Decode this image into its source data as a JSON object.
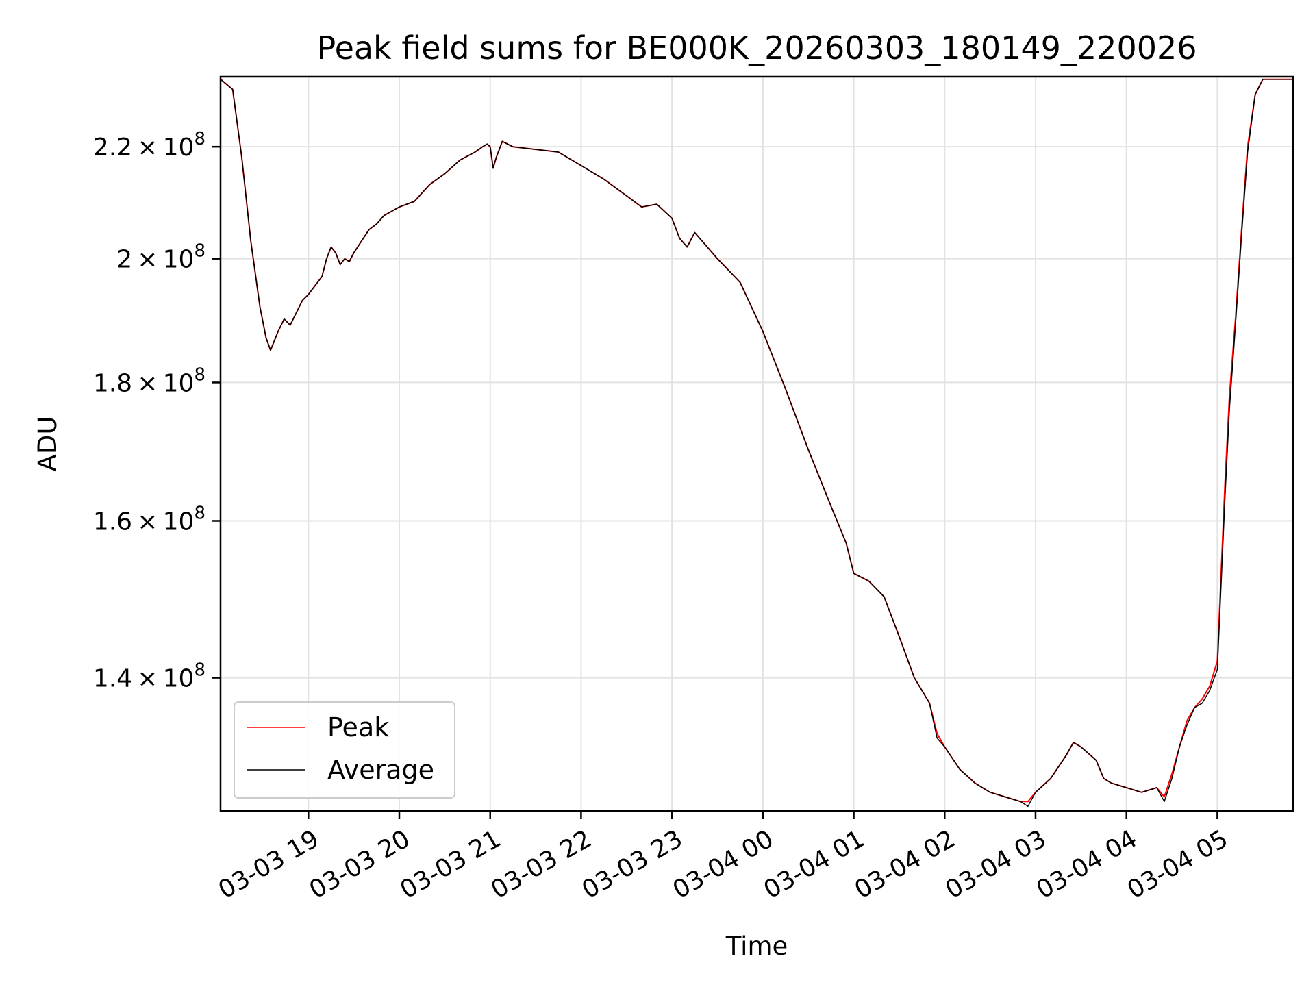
{
  "chart_data": {
    "type": "line",
    "title": "Peak field sums for BE000K_20260303_180149_220026",
    "xlabel": "Time",
    "ylabel": "ADU",
    "y_scale": "log",
    "xlim": [
      "2026-03-03 18:02",
      "2026-03-04 05:50"
    ],
    "ylim": [
      125000000,
      233500000
    ],
    "x_ticks": [
      "03-03 19",
      "03-03 20",
      "03-03 21",
      "03-03 22",
      "03-03 23",
      "03-04 00",
      "03-04 01",
      "03-04 02",
      "03-04 03",
      "03-04 04",
      "03-04 05"
    ],
    "y_ticks": [
      {
        "value": 140000000,
        "mantissa": "1.4",
        "exp": "8"
      },
      {
        "value": 160000000,
        "mantissa": "1.6",
        "exp": "8"
      },
      {
        "value": 180000000,
        "mantissa": "1.8",
        "exp": "8"
      },
      {
        "value": 200000000,
        "mantissa": "2",
        "exp": "8"
      },
      {
        "value": 220000000,
        "mantissa": "2.2",
        "exp": "8"
      }
    ],
    "grid": true,
    "legend": {
      "position": "lower left"
    },
    "series": [
      {
        "name": "Peak",
        "color": "#ff0000",
        "x": [
          "2026-03-03 18:02",
          "2026-03-03 18:10",
          "2026-03-03 18:16",
          "2026-03-03 18:22",
          "2026-03-03 18:28",
          "2026-03-03 18:32",
          "2026-03-03 18:35",
          "2026-03-03 18:40",
          "2026-03-03 18:44",
          "2026-03-03 18:48",
          "2026-03-03 18:52",
          "2026-03-03 18:56",
          "2026-03-03 19:00",
          "2026-03-03 19:03",
          "2026-03-03 19:06",
          "2026-03-03 19:09",
          "2026-03-03 19:12",
          "2026-03-03 19:15",
          "2026-03-03 19:18",
          "2026-03-03 19:21",
          "2026-03-03 19:24",
          "2026-03-03 19:27",
          "2026-03-03 19:30",
          "2026-03-03 19:35",
          "2026-03-03 19:40",
          "2026-03-03 19:45",
          "2026-03-03 19:50",
          "2026-03-03 20:00",
          "2026-03-03 20:10",
          "2026-03-03 20:20",
          "2026-03-03 20:30",
          "2026-03-03 20:40",
          "2026-03-03 20:50",
          "2026-03-03 20:55",
          "2026-03-03 20:58",
          "2026-03-03 21:00",
          "2026-03-03 21:02",
          "2026-03-03 21:04",
          "2026-03-03 21:08",
          "2026-03-03 21:15",
          "2026-03-03 21:30",
          "2026-03-03 21:45",
          "2026-03-03 22:00",
          "2026-03-03 22:15",
          "2026-03-03 22:30",
          "2026-03-03 22:40",
          "2026-03-03 22:50",
          "2026-03-03 23:00",
          "2026-03-03 23:05",
          "2026-03-03 23:10",
          "2026-03-03 23:15",
          "2026-03-03 23:20",
          "2026-03-03 23:30",
          "2026-03-03 23:45",
          "2026-03-04 00:00",
          "2026-03-04 00:15",
          "2026-03-04 00:30",
          "2026-03-04 00:45",
          "2026-03-04 00:55",
          "2026-03-04 01:00",
          "2026-03-04 01:10",
          "2026-03-04 01:20",
          "2026-03-04 01:30",
          "2026-03-04 01:40",
          "2026-03-04 01:50",
          "2026-03-04 01:55",
          "2026-03-04 02:00",
          "2026-03-04 02:10",
          "2026-03-04 02:20",
          "2026-03-04 02:30",
          "2026-03-04 02:40",
          "2026-03-04 02:50",
          "2026-03-04 02:55",
          "2026-03-04 03:00",
          "2026-03-04 03:10",
          "2026-03-04 03:20",
          "2026-03-04 03:25",
          "2026-03-04 03:30",
          "2026-03-04 03:40",
          "2026-03-04 03:45",
          "2026-03-04 03:50",
          "2026-03-04 04:00",
          "2026-03-04 04:10",
          "2026-03-04 04:20",
          "2026-03-04 04:25",
          "2026-03-04 04:30",
          "2026-03-04 04:35",
          "2026-03-04 04:40",
          "2026-03-04 04:45",
          "2026-03-04 04:50",
          "2026-03-04 04:55",
          "2026-03-04 05:00",
          "2026-03-04 05:05",
          "2026-03-04 05:08",
          "2026-03-04 05:12",
          "2026-03-04 05:16",
          "2026-03-04 05:20",
          "2026-03-04 05:25",
          "2026-03-04 05:30",
          "2026-03-04 05:40",
          "2026-03-04 05:50"
        ],
        "y": [
          233000000,
          231000000,
          218000000,
          203000000,
          192000000,
          187000000,
          185000000,
          188000000,
          190000000,
          189000000,
          191000000,
          193000000,
          194000000,
          195000000,
          196000000,
          197000000,
          200000000,
          202000000,
          201000000,
          199000000,
          200000000,
          199500000,
          201000000,
          203000000,
          205000000,
          206000000,
          207500000,
          209000000,
          210000000,
          213000000,
          215000000,
          217500000,
          219000000,
          220000000,
          220500000,
          220000000,
          216000000,
          218000000,
          221000000,
          220000000,
          219500000,
          219000000,
          216500000,
          214000000,
          211000000,
          209000000,
          209500000,
          207000000,
          203500000,
          202000000,
          204500000,
          203000000,
          200000000,
          196000000,
          188000000,
          179000000,
          170000000,
          162000000,
          157000000,
          153000000,
          152000000,
          150000000,
          145000000,
          140000000,
          137000000,
          133500000,
          132000000,
          129500000,
          128000000,
          127000000,
          126500000,
          126000000,
          126000000,
          127000000,
          128500000,
          131000000,
          132500000,
          132000000,
          130500000,
          128500000,
          128000000,
          127500000,
          127000000,
          127500000,
          126500000,
          129000000,
          132000000,
          135000000,
          136500000,
          137500000,
          139000000,
          142000000,
          165000000,
          178000000,
          190000000,
          205000000,
          220000000,
          230000000,
          233000000,
          233000000,
          233000000
        ]
      },
      {
        "name": "Average",
        "color": "#000000",
        "x": [
          "2026-03-03 18:02",
          "2026-03-03 18:10",
          "2026-03-03 18:16",
          "2026-03-03 18:22",
          "2026-03-03 18:28",
          "2026-03-03 18:32",
          "2026-03-03 18:35",
          "2026-03-03 18:40",
          "2026-03-03 18:44",
          "2026-03-03 18:48",
          "2026-03-03 18:52",
          "2026-03-03 18:56",
          "2026-03-03 19:00",
          "2026-03-03 19:03",
          "2026-03-03 19:06",
          "2026-03-03 19:09",
          "2026-03-03 19:12",
          "2026-03-03 19:15",
          "2026-03-03 19:18",
          "2026-03-03 19:21",
          "2026-03-03 19:24",
          "2026-03-03 19:27",
          "2026-03-03 19:30",
          "2026-03-03 19:35",
          "2026-03-03 19:40",
          "2026-03-03 19:45",
          "2026-03-03 19:50",
          "2026-03-03 20:00",
          "2026-03-03 20:10",
          "2026-03-03 20:20",
          "2026-03-03 20:30",
          "2026-03-03 20:40",
          "2026-03-03 20:50",
          "2026-03-03 20:55",
          "2026-03-03 20:58",
          "2026-03-03 21:00",
          "2026-03-03 21:02",
          "2026-03-03 21:04",
          "2026-03-03 21:08",
          "2026-03-03 21:15",
          "2026-03-03 21:30",
          "2026-03-03 21:45",
          "2026-03-03 22:00",
          "2026-03-03 22:15",
          "2026-03-03 22:30",
          "2026-03-03 22:40",
          "2026-03-03 22:50",
          "2026-03-03 23:00",
          "2026-03-03 23:05",
          "2026-03-03 23:10",
          "2026-03-03 23:15",
          "2026-03-03 23:20",
          "2026-03-03 23:30",
          "2026-03-03 23:45",
          "2026-03-04 00:00",
          "2026-03-04 00:15",
          "2026-03-04 00:30",
          "2026-03-04 00:45",
          "2026-03-04 00:55",
          "2026-03-04 01:00",
          "2026-03-04 01:10",
          "2026-03-04 01:20",
          "2026-03-04 01:30",
          "2026-03-04 01:40",
          "2026-03-04 01:50",
          "2026-03-04 01:55",
          "2026-03-04 02:00",
          "2026-03-04 02:10",
          "2026-03-04 02:20",
          "2026-03-04 02:30",
          "2026-03-04 02:40",
          "2026-03-04 02:50",
          "2026-03-04 02:55",
          "2026-03-04 03:00",
          "2026-03-04 03:10",
          "2026-03-04 03:20",
          "2026-03-04 03:25",
          "2026-03-04 03:30",
          "2026-03-04 03:40",
          "2026-03-04 03:45",
          "2026-03-04 03:50",
          "2026-03-04 04:00",
          "2026-03-04 04:10",
          "2026-03-04 04:20",
          "2026-03-04 04:25",
          "2026-03-04 04:30",
          "2026-03-04 04:35",
          "2026-03-04 04:40",
          "2026-03-04 04:45",
          "2026-03-04 04:50",
          "2026-03-04 04:55",
          "2026-03-04 05:00",
          "2026-03-04 05:05",
          "2026-03-04 05:08",
          "2026-03-04 05:12",
          "2026-03-04 05:16",
          "2026-03-04 05:20",
          "2026-03-04 05:25",
          "2026-03-04 05:30",
          "2026-03-04 05:40",
          "2026-03-04 05:50"
        ],
        "y": [
          233000000,
          231000000,
          218000000,
          203000000,
          192000000,
          187000000,
          185000000,
          188000000,
          190000000,
          189000000,
          191000000,
          193000000,
          194000000,
          195000000,
          196000000,
          197000000,
          200000000,
          202000000,
          201000000,
          199000000,
          200000000,
          199500000,
          201000000,
          203000000,
          205000000,
          206000000,
          207500000,
          209000000,
          210000000,
          213000000,
          215000000,
          217500000,
          219000000,
          220000000,
          220500000,
          220000000,
          216000000,
          218000000,
          221000000,
          220000000,
          219500000,
          219000000,
          216500000,
          214000000,
          211000000,
          209000000,
          209500000,
          207000000,
          203500000,
          202000000,
          204500000,
          203000000,
          200000000,
          196000000,
          188000000,
          179000000,
          170000000,
          162000000,
          157000000,
          153000000,
          152000000,
          150000000,
          145000000,
          140000000,
          137000000,
          133000000,
          132000000,
          129500000,
          128000000,
          127000000,
          126500000,
          126000000,
          125500000,
          127000000,
          128500000,
          131000000,
          132500000,
          132000000,
          130500000,
          128500000,
          128000000,
          127500000,
          127000000,
          127500000,
          126000000,
          128500000,
          132000000,
          134500000,
          136500000,
          137000000,
          138500000,
          141000000,
          163000000,
          176000000,
          189000000,
          204000000,
          219000000,
          230000000,
          233000000,
          233000000,
          233000000
        ]
      }
    ]
  }
}
